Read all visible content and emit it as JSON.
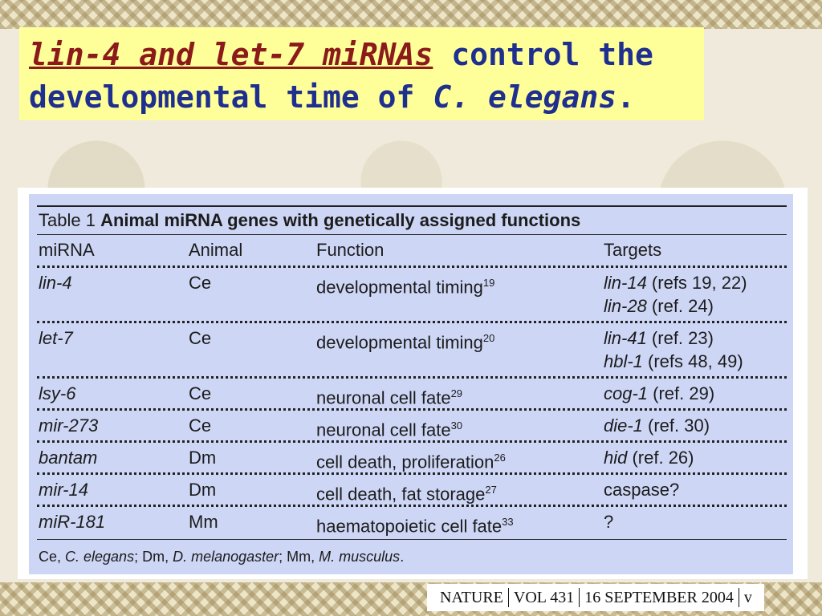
{
  "title": {
    "highlight": "lin-4 and let-7 miRNAs",
    "rest1": " control the",
    "line2_pre": "developmental time of ",
    "line2_italic": "C. elegans",
    "line2_post": "."
  },
  "table": {
    "caption_label": "Table 1 ",
    "caption_title": "Animal miRNA genes with genetically assigned functions",
    "headers": [
      "miRNA",
      "Animal",
      "Function",
      "Targets"
    ],
    "rows": [
      {
        "mirna": "lin-4",
        "animal": "Ce",
        "function": "developmental timing",
        "fref": "19",
        "targets": [
          {
            "gene": "lin-14",
            "ref": " (refs 19, 22)"
          },
          {
            "gene": "lin-28",
            "ref": " (ref. 24)"
          }
        ]
      },
      {
        "mirna": "let-7",
        "animal": "Ce",
        "function": "developmental timing",
        "fref": "20",
        "targets": [
          {
            "gene": "lin-41",
            "ref": " (ref. 23)"
          },
          {
            "gene": "hbl-1",
            "ref": " (refs 48, 49)"
          }
        ]
      },
      {
        "mirna": "lsy-6",
        "animal": "Ce",
        "function": "neuronal cell fate",
        "fref": "29",
        "targets": [
          {
            "gene": "cog-1",
            "ref": " (ref. 29)"
          }
        ]
      },
      {
        "mirna": "mir-273",
        "animal": "Ce",
        "function": "neuronal cell fate",
        "fref": "30",
        "targets": [
          {
            "gene": "die-1",
            "ref": " (ref. 30)"
          }
        ]
      },
      {
        "mirna": "bantam",
        "animal": "Dm",
        "function": "cell death, proliferation",
        "fref": "26",
        "targets": [
          {
            "gene": "hid",
            "ref": " (ref. 26)"
          }
        ]
      },
      {
        "mirna": "mir-14",
        "animal": "Dm",
        "function": "cell death, fat storage",
        "fref": "27",
        "targets": [
          {
            "gene": "",
            "ref": "caspase?"
          }
        ]
      },
      {
        "mirna": "miR-181",
        "animal": "Mm",
        "function": "haematopoietic cell fate",
        "fref": "33",
        "targets": [
          {
            "gene": "",
            "ref": "?"
          }
        ]
      }
    ],
    "footnote": {
      "a1": "Ce, ",
      "b1": "C. elegans",
      "a2": "; Dm, ",
      "b2": "D. melanogaster",
      "a3": "; Mm, ",
      "b3": "M. musculus",
      "a4": "."
    }
  },
  "citation": {
    "journal": "NATURE",
    "vol": "VOL 431",
    "date": "16 SEPTEMBER 2004",
    "trail": "v"
  }
}
